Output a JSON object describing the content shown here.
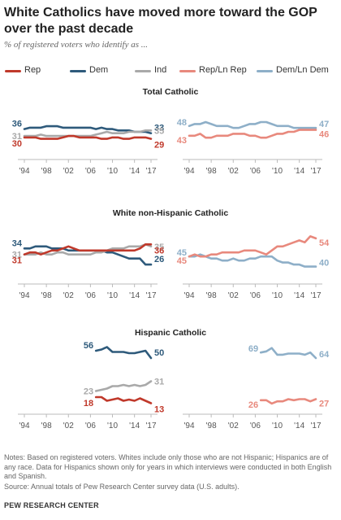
{
  "title": "White Catholics have moved more toward the GOP over the past decade",
  "subtitle": "% of registered voters who identify as ...",
  "legend": [
    {
      "label": "Rep",
      "color": "#c0392b"
    },
    {
      "label": "Dem",
      "color": "#2e5a7b"
    },
    {
      "label": "Ind",
      "color": "#a9a9a9"
    },
    {
      "label": "Rep/Ln Rep",
      "color": "#e8897d"
    },
    {
      "label": "Dem/Ln Dem",
      "color": "#8eafc8"
    }
  ],
  "sections": [
    "Total Catholic",
    "White non-Hispanic Catholic",
    "Hispanic Catholic"
  ],
  "notes": "Notes: Based on registered voters. Whites include only those who are not Hispanic; Hispanics are of any race. Data for Hispanics shown only for years in which interviews were conducted in both English and Spanish.",
  "source": "Source: Annual totals of Pew Research Center survey data (U.S. adults).",
  "brand": "PEW RESEARCH CENTER",
  "chart_data": [
    {
      "type": "line",
      "section": "Total Catholic",
      "x": [
        1994,
        1995,
        1996,
        1997,
        1998,
        1999,
        2000,
        2001,
        2002,
        2003,
        2004,
        2005,
        2006,
        2007,
        2008,
        2009,
        2010,
        2011,
        2012,
        2013,
        2014,
        2015,
        2016,
        2017
      ],
      "xticks": [
        "'94",
        "'98",
        "'02",
        "'06",
        "'10",
        "'14",
        "'17"
      ],
      "series": [
        {
          "name": "Dem",
          "color": "#2e5a7b",
          "values": [
            36,
            37,
            37,
            37,
            38,
            38,
            38,
            37,
            37,
            37,
            37,
            37,
            37,
            36,
            37,
            36,
            36,
            35,
            35,
            35,
            34,
            34,
            34,
            33
          ]
        },
        {
          "name": "Ind",
          "color": "#a9a9a9",
          "values": [
            31,
            31,
            31,
            32,
            31,
            31,
            31,
            31,
            31,
            31,
            31,
            31,
            31,
            32,
            33,
            34,
            33,
            33,
            33,
            34,
            34,
            34,
            35,
            35
          ]
        },
        {
          "name": "Rep",
          "color": "#c0392b",
          "values": [
            30,
            30,
            30,
            29,
            29,
            29,
            29,
            30,
            31,
            31,
            30,
            30,
            30,
            30,
            29,
            29,
            30,
            30,
            29,
            29,
            30,
            30,
            30,
            29
          ]
        }
      ]
    },
    {
      "type": "line",
      "section": "Total Catholic",
      "x": [
        1994,
        1995,
        1996,
        1997,
        1998,
        1999,
        2000,
        2001,
        2002,
        2003,
        2004,
        2005,
        2006,
        2007,
        2008,
        2009,
        2010,
        2011,
        2012,
        2013,
        2014,
        2015,
        2016,
        2017
      ],
      "xticks": [
        "'94",
        "'98",
        "'02",
        "'06",
        "'10",
        "'14",
        "'17"
      ],
      "series": [
        {
          "name": "Dem/Ln Dem",
          "color": "#8eafc8",
          "values": [
            48,
            49,
            49,
            50,
            49,
            48,
            48,
            48,
            47,
            47,
            48,
            49,
            49,
            50,
            50,
            49,
            48,
            48,
            48,
            47,
            47,
            47,
            47,
            47
          ]
        },
        {
          "name": "Rep/Ln Rep",
          "color": "#e8897d",
          "values": [
            43,
            43,
            44,
            42,
            42,
            43,
            43,
            43,
            44,
            44,
            44,
            43,
            43,
            42,
            42,
            43,
            44,
            44,
            45,
            45,
            46,
            46,
            46,
            46
          ]
        }
      ]
    },
    {
      "type": "line",
      "section": "White non-Hispanic Catholic",
      "x": [
        1994,
        1995,
        1996,
        1997,
        1998,
        1999,
        2000,
        2001,
        2002,
        2003,
        2004,
        2005,
        2006,
        2007,
        2008,
        2009,
        2010,
        2011,
        2012,
        2013,
        2014,
        2015,
        2016,
        2017
      ],
      "xticks": [
        "'94",
        "'98",
        "'02",
        "'06",
        "'10",
        "'14",
        "'17"
      ],
      "series": [
        {
          "name": "Dem",
          "color": "#2e5a7b",
          "values": [
            34,
            34,
            35,
            35,
            35,
            34,
            34,
            34,
            33,
            33,
            33,
            33,
            33,
            33,
            33,
            32,
            32,
            31,
            30,
            29,
            29,
            29,
            26,
            26
          ]
        },
        {
          "name": "Ind",
          "color": "#a9a9a9",
          "values": [
            31,
            31,
            31,
            32,
            31,
            31,
            32,
            32,
            31,
            31,
            31,
            31,
            31,
            32,
            32,
            33,
            34,
            34,
            34,
            35,
            35,
            35,
            36,
            35
          ]
        },
        {
          "name": "Rep",
          "color": "#c0392b",
          "values": [
            31,
            32,
            32,
            31,
            32,
            33,
            33,
            34,
            35,
            34,
            33,
            33,
            33,
            33,
            33,
            33,
            33,
            33,
            33,
            33,
            33,
            34,
            36,
            36
          ]
        }
      ]
    },
    {
      "type": "line",
      "section": "White non-Hispanic Catholic",
      "x": [
        1994,
        1995,
        1996,
        1997,
        1998,
        1999,
        2000,
        2001,
        2002,
        2003,
        2004,
        2005,
        2006,
        2007,
        2008,
        2009,
        2010,
        2011,
        2012,
        2013,
        2014,
        2015,
        2016,
        2017
      ],
      "xticks": [
        "'94",
        "'98",
        "'02",
        "'06",
        "'10",
        "'14",
        "'17"
      ],
      "series": [
        {
          "name": "Dem/Ln Dem",
          "color": "#8eafc8",
          "values": [
            45,
            45,
            46,
            45,
            44,
            44,
            43,
            43,
            44,
            43,
            43,
            44,
            44,
            45,
            45,
            45,
            43,
            42,
            42,
            41,
            41,
            40,
            40,
            40
          ]
        },
        {
          "name": "Rep/Ln Rep",
          "color": "#e8897d",
          "values": [
            45,
            46,
            45,
            45,
            46,
            46,
            47,
            47,
            47,
            47,
            48,
            48,
            48,
            47,
            46,
            48,
            50,
            50,
            51,
            52,
            53,
            52,
            55,
            54
          ]
        }
      ]
    },
    {
      "type": "line",
      "section": "Hispanic Catholic",
      "x": [
        2007,
        2008,
        2009,
        2010,
        2011,
        2012,
        2013,
        2014,
        2015,
        2016,
        2017
      ],
      "xticks": [
        "'94",
        "'98",
        "'02",
        "'06",
        "'10",
        "'14",
        "'17"
      ],
      "series": [
        {
          "name": "Dem",
          "color": "#2e5a7b",
          "values": [
            56,
            57,
            59,
            55,
            55,
            55,
            54,
            54,
            55,
            56,
            50
          ]
        },
        {
          "name": "Ind",
          "color": "#a9a9a9",
          "values": [
            23,
            24,
            25,
            27,
            27,
            28,
            27,
            28,
            27,
            28,
            31
          ]
        },
        {
          "name": "Rep",
          "color": "#c0392b",
          "values": [
            18,
            18,
            15,
            16,
            17,
            15,
            16,
            15,
            17,
            15,
            13
          ]
        }
      ]
    },
    {
      "type": "line",
      "section": "Hispanic Catholic",
      "x": [
        2007,
        2008,
        2009,
        2010,
        2011,
        2012,
        2013,
        2014,
        2015,
        2016,
        2017
      ],
      "xticks": [
        "'94",
        "'98",
        "'02",
        "'06",
        "'10",
        "'14",
        "'17"
      ],
      "series": [
        {
          "name": "Dem/Ln Dem",
          "color": "#8eafc8",
          "values": [
            69,
            70,
            73,
            67,
            67,
            68,
            68,
            68,
            67,
            69,
            64
          ]
        },
        {
          "name": "Rep/Ln Rep",
          "color": "#e8897d",
          "values": [
            26,
            26,
            23,
            25,
            25,
            27,
            26,
            27,
            27,
            25,
            27
          ]
        }
      ]
    }
  ]
}
